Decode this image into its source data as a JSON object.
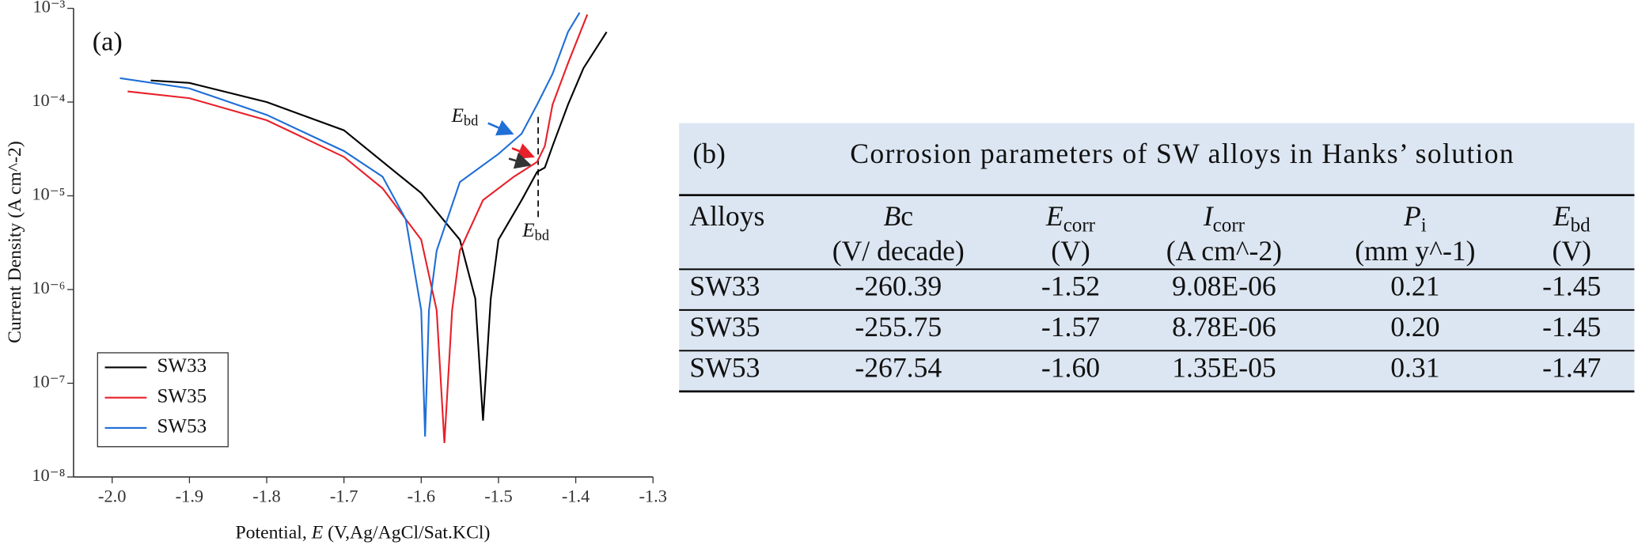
{
  "chart_data": {
    "type": "line",
    "log_y": true,
    "panel_label": "(a)",
    "xlabel": {
      "pre": "Potential, ",
      "symbol": "E",
      "post": " (V,Ag/AgCl/Sat.KCl)"
    },
    "ylabel": "Current Density (A cm^-2)",
    "annotations": [
      {
        "symbol": "E",
        "sub": "bd"
      },
      {
        "symbol": "E",
        "sub": "bd"
      }
    ],
    "xlim": [
      -2.05,
      -1.3
    ],
    "xticks": [
      {
        "value": -2,
        "label": "-2.0"
      },
      -1.9,
      -1.8,
      -1.7,
      -1.6,
      -1.5,
      -1.4,
      -1.3
    ],
    "ylim": [
      1e-08,
      0.001
    ],
    "yticks": [
      {
        "value": 1e-08,
        "label": "10⁻⁸"
      },
      {
        "value": 1e-07,
        "label": "10⁻⁷"
      },
      {
        "value": 1e-06,
        "label": "10⁻⁶"
      },
      {
        "value": 1e-05,
        "label": "10⁻⁵"
      },
      {
        "value": 0.0001,
        "label": "10⁻⁴"
      },
      {
        "value": 0.001,
        "label": "10⁻³"
      }
    ],
    "legend": "lower left",
    "series": [
      {
        "name": "SW33",
        "color": "#000000",
        "x": [
          -1.95,
          -1.9,
          -1.8,
          -1.7,
          -1.6,
          -1.55,
          -1.53,
          -1.52,
          -1.51,
          -1.5,
          -1.47,
          -1.45,
          -1.44,
          -1.43,
          -1.41,
          -1.39,
          -1.36
        ],
        "values": [
          0.00017,
          0.00016,
          0.0001,
          5e-05,
          1.07e-05,
          3.4e-06,
          8e-07,
          4e-08,
          8e-07,
          3.4e-06,
          9e-06,
          1.8e-05,
          2e-05,
          3.4e-05,
          9.4e-05,
          0.00023,
          0.00056
        ]
      },
      {
        "name": "SW35",
        "color": "#e8202a",
        "x": [
          -1.98,
          -1.9,
          -1.8,
          -1.7,
          -1.65,
          -1.6,
          -1.58,
          -1.57,
          -1.56,
          -1.55,
          -1.52,
          -1.48,
          -1.45,
          -1.44,
          -1.43,
          -1.41,
          -1.385
        ],
        "values": [
          0.00013,
          0.00011,
          6.4e-05,
          2.6e-05,
          1.2e-05,
          3.4e-06,
          6e-07,
          2.3e-08,
          6e-07,
          2.6e-06,
          9e-06,
          1.6e-05,
          2.3e-05,
          3.4e-05,
          9.4e-05,
          0.00026,
          0.00086
        ]
      },
      {
        "name": "SW53",
        "color": "#1f6fd6",
        "x": [
          -1.99,
          -1.9,
          -1.8,
          -1.7,
          -1.65,
          -1.62,
          -1.6,
          -1.595,
          -1.59,
          -1.58,
          -1.55,
          -1.5,
          -1.47,
          -1.45,
          -1.43,
          -1.41,
          -1.395
        ],
        "values": [
          0.00018,
          0.00014,
          7.3e-05,
          3e-05,
          1.6e-05,
          5.6e-06,
          6e-07,
          2.7e-08,
          6e-07,
          2.6e-06,
          1.4e-05,
          2.8e-05,
          4.6e-05,
          9.4e-05,
          0.0002,
          0.00056,
          0.0009
        ]
      }
    ]
  },
  "table": {
    "label": "(b)",
    "title": "Corrosion parameters of SW alloys in Hanks’ solution",
    "columns": [
      {
        "main": "Alloys"
      },
      {
        "symbol": "B",
        "rest": "c",
        "unit": "(V/ decade)"
      },
      {
        "symbol": "E",
        "sub": "corr",
        "unit": "(V)"
      },
      {
        "symbol": "I",
        "sub": "corr",
        "unit": "(A cm^-2)"
      },
      {
        "symbol": "P",
        "sub": "i",
        "unit": "(mm y^-1)"
      },
      {
        "symbol": "E",
        "sub": "bd",
        "unit": "(V)"
      }
    ],
    "rows": [
      [
        "SW33",
        "-260.39",
        "-1.52",
        "9.08E-06",
        "0.21",
        "-1.45"
      ],
      [
        "SW35",
        "-255.75",
        "-1.57",
        "8.78E-06",
        "0.20",
        "-1.45"
      ],
      [
        "SW53",
        "-267.54",
        "-1.60",
        "1.35E-05",
        "0.31",
        "-1.47"
      ]
    ]
  }
}
